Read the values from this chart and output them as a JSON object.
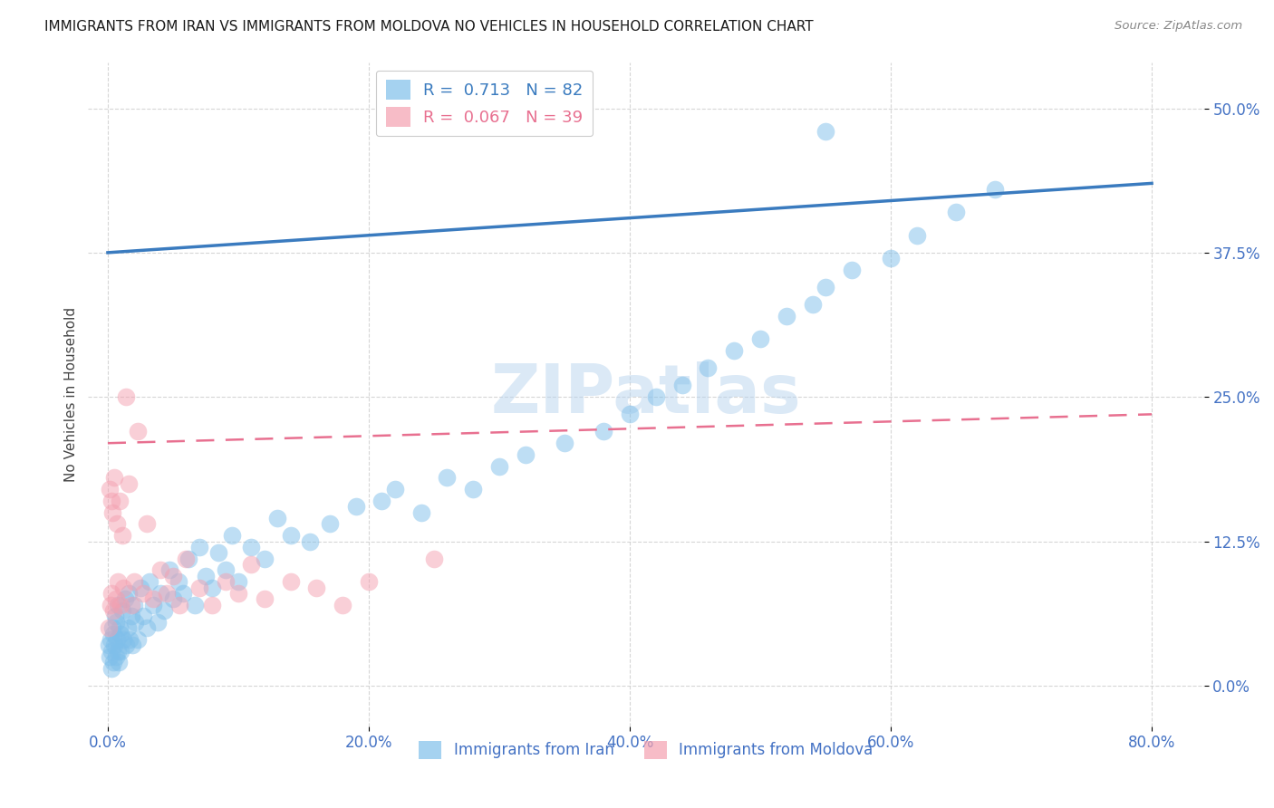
{
  "title": "IMMIGRANTS FROM IRAN VS IMMIGRANTS FROM MOLDOVA NO VEHICLES IN HOUSEHOLD CORRELATION CHART",
  "source": "Source: ZipAtlas.com",
  "xlabel_ticks": [
    "0.0%",
    "20.0%",
    "40.0%",
    "60.0%",
    "80.0%"
  ],
  "xlabel_vals": [
    0.0,
    20.0,
    40.0,
    60.0,
    80.0
  ],
  "ylabel_ticks": [
    "0.0%",
    "12.5%",
    "25.0%",
    "37.5%",
    "50.0%"
  ],
  "ylabel_vals": [
    0.0,
    12.5,
    25.0,
    37.5,
    50.0
  ],
  "xlim": [
    -1.5,
    84
  ],
  "ylim": [
    -3.5,
    54
  ],
  "iran_R": 0.713,
  "iran_N": 82,
  "moldova_R": 0.067,
  "moldova_N": 39,
  "iran_color": "#7fbfea",
  "moldova_color": "#f4a0b0",
  "iran_line_color": "#3a7bbf",
  "moldova_line_color": "#e87090",
  "iran_line_x0": 0.0,
  "iran_line_y0": 37.5,
  "iran_line_x1": 80.0,
  "iran_line_y1": 43.5,
  "moldova_line_x0": 0.0,
  "moldova_line_y0": 21.0,
  "moldova_line_x1": 80.0,
  "moldova_line_y1": 23.5,
  "iran_x": [
    0.1,
    0.15,
    0.2,
    0.25,
    0.3,
    0.35,
    0.4,
    0.45,
    0.5,
    0.55,
    0.6,
    0.65,
    0.7,
    0.75,
    0.8,
    0.85,
    0.9,
    0.95,
    1.0,
    1.1,
    1.2,
    1.3,
    1.4,
    1.5,
    1.6,
    1.7,
    1.8,
    1.9,
    2.0,
    2.1,
    2.3,
    2.5,
    2.7,
    3.0,
    3.2,
    3.5,
    3.8,
    4.0,
    4.3,
    4.7,
    5.0,
    5.4,
    5.8,
    6.2,
    6.7,
    7.0,
    7.5,
    8.0,
    8.5,
    9.0,
    9.5,
    10.0,
    11.0,
    12.0,
    13.0,
    14.0,
    15.5,
    17.0,
    19.0,
    21.0,
    22.0,
    24.0,
    26.0,
    28.0,
    30.0,
    32.0,
    35.0,
    38.0,
    40.0,
    42.0,
    44.0,
    46.0,
    48.0,
    50.0,
    52.0,
    54.0,
    55.0,
    57.0,
    60.0,
    62.0,
    65.0,
    68.0
  ],
  "iran_y": [
    3.5,
    2.5,
    4.0,
    1.5,
    3.0,
    5.0,
    2.0,
    4.5,
    3.5,
    6.0,
    2.5,
    5.5,
    4.0,
    3.0,
    7.0,
    2.0,
    5.0,
    4.5,
    3.0,
    6.5,
    4.0,
    7.5,
    3.5,
    5.0,
    8.0,
    4.0,
    6.0,
    3.5,
    7.0,
    5.5,
    4.0,
    8.5,
    6.0,
    5.0,
    9.0,
    7.0,
    5.5,
    8.0,
    6.5,
    10.0,
    7.5,
    9.0,
    8.0,
    11.0,
    7.0,
    12.0,
    9.5,
    8.5,
    11.5,
    10.0,
    13.0,
    9.0,
    12.0,
    11.0,
    14.5,
    13.0,
    12.5,
    14.0,
    15.5,
    16.0,
    17.0,
    15.0,
    18.0,
    17.0,
    19.0,
    20.0,
    21.0,
    22.0,
    23.5,
    25.0,
    26.0,
    27.5,
    29.0,
    30.0,
    32.0,
    33.0,
    34.5,
    36.0,
    37.0,
    39.0,
    41.0,
    43.0
  ],
  "iran_outlier_x": 55.0,
  "iran_outlier_y": 48.0,
  "moldova_x": [
    0.1,
    0.15,
    0.2,
    0.25,
    0.3,
    0.35,
    0.4,
    0.5,
    0.6,
    0.7,
    0.8,
    0.9,
    1.0,
    1.1,
    1.2,
    1.4,
    1.6,
    1.8,
    2.0,
    2.3,
    2.7,
    3.0,
    3.5,
    4.0,
    4.5,
    5.0,
    5.5,
    6.0,
    7.0,
    8.0,
    9.0,
    10.0,
    11.0,
    12.0,
    14.0,
    16.0,
    18.0,
    20.0,
    25.0
  ],
  "moldova_y": [
    5.0,
    17.0,
    7.0,
    16.0,
    8.0,
    15.0,
    6.5,
    18.0,
    7.5,
    14.0,
    9.0,
    16.0,
    7.0,
    13.0,
    8.5,
    25.0,
    17.5,
    7.0,
    9.0,
    22.0,
    8.0,
    14.0,
    7.5,
    10.0,
    8.0,
    9.5,
    7.0,
    11.0,
    8.5,
    7.0,
    9.0,
    8.0,
    10.5,
    7.5,
    9.0,
    8.5,
    7.0,
    9.0,
    11.0
  ],
  "watermark": "ZIPatlas",
  "ylabel": "No Vehicles in Household",
  "title_fontsize": 11,
  "tick_color": "#4472c4",
  "grid_color": "#cccccc",
  "legend_label_iran": "R =  0.713   N = 82",
  "legend_label_moldova": "R =  0.067   N = 39",
  "bottom_legend_iran": "Immigrants from Iran",
  "bottom_legend_moldova": "Immigrants from Moldova"
}
